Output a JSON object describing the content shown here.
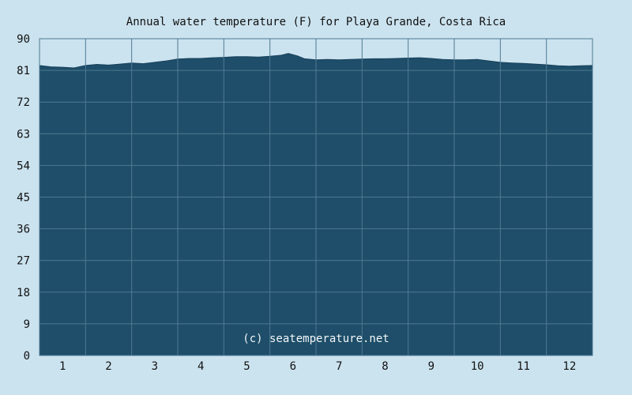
{
  "chart_data": {
    "type": "area",
    "title": "Annual water temperature (F) for Playa Grande, Costa Rica",
    "xlabel": "",
    "ylabel": "",
    "ylim": [
      0,
      90
    ],
    "y_ticks": [
      "0",
      "9",
      "18",
      "27",
      "36",
      "45",
      "54",
      "63",
      "72",
      "81",
      "90"
    ],
    "x_ticks": [
      "1",
      "2",
      "3",
      "4",
      "5",
      "6",
      "7",
      "8",
      "9",
      "10",
      "11",
      "12"
    ],
    "grid": true,
    "x_unit": "month",
    "x": [
      0.0,
      0.25,
      0.5,
      0.75,
      1.0,
      1.25,
      1.5,
      1.75,
      2.0,
      2.25,
      2.5,
      2.75,
      3.0,
      3.25,
      3.5,
      3.75,
      4.0,
      4.25,
      4.5,
      4.75,
      5.0,
      5.25,
      5.4,
      5.6,
      5.75,
      6.0,
      6.25,
      6.5,
      6.75,
      7.0,
      7.25,
      7.5,
      7.75,
      8.0,
      8.25,
      8.5,
      8.75,
      9.0,
      9.25,
      9.5,
      9.75,
      10.0,
      10.25,
      10.5,
      10.75,
      11.0,
      11.25,
      11.5,
      11.75,
      12.0
    ],
    "values": [
      82.4,
      82.0,
      81.9,
      81.7,
      82.4,
      82.7,
      82.5,
      82.8,
      83.1,
      82.9,
      83.3,
      83.7,
      84.2,
      84.4,
      84.4,
      84.6,
      84.7,
      84.9,
      84.9,
      84.8,
      85.0,
      85.3,
      85.8,
      85.1,
      84.3,
      84.0,
      84.1,
      84.0,
      84.1,
      84.2,
      84.3,
      84.3,
      84.4,
      84.5,
      84.6,
      84.4,
      84.1,
      84.0,
      84.0,
      84.1,
      83.7,
      83.3,
      83.1,
      83.0,
      82.8,
      82.6,
      82.3,
      82.2,
      82.3,
      82.4
    ],
    "colors": {
      "background": "#cbe3ef",
      "fill": "#1e4e69",
      "outline": "#17405a",
      "grid": "#4f7a92",
      "frame": "#4f7a92"
    },
    "watermark": "(c) seatemperature.net"
  }
}
